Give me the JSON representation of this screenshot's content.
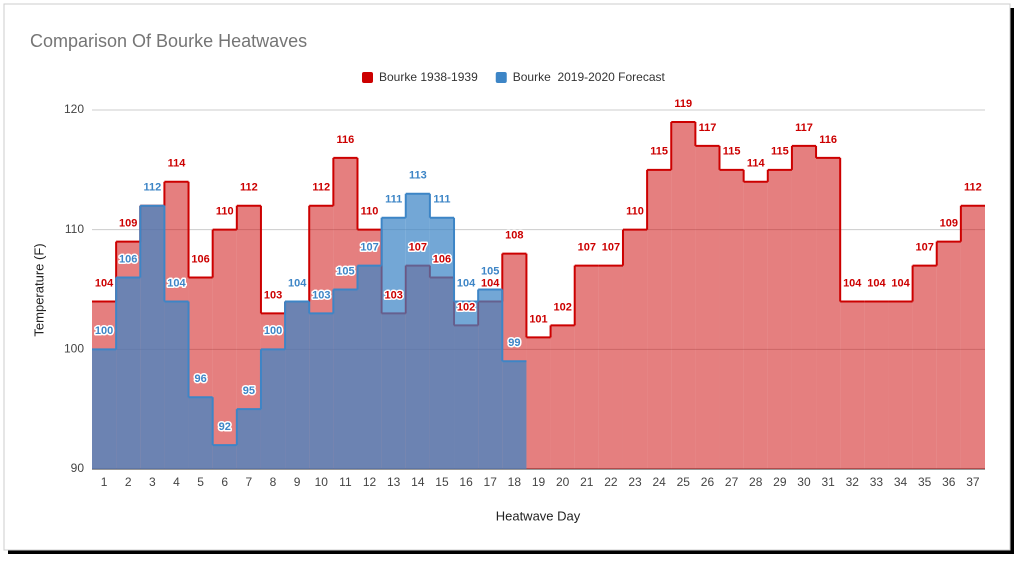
{
  "chart_data": {
    "type": "stepped-area",
    "title": "Comparison Of Bourke Heatwaves",
    "x_label": "Heatwave Day",
    "y_label": "Temperature (F)",
    "categories": [
      "1",
      "2",
      "3",
      "4",
      "5",
      "6",
      "7",
      "8",
      "9",
      "10",
      "11",
      "12",
      "13",
      "14",
      "15",
      "16",
      "17",
      "18",
      "19",
      "20",
      "21",
      "22",
      "23",
      "24",
      "25",
      "26",
      "27",
      "28",
      "29",
      "30",
      "31",
      "32",
      "33",
      "34",
      "35",
      "36",
      "37"
    ],
    "series": [
      {
        "name": "Bourke 1938-1939",
        "color": "#cc0000",
        "values": [
          104,
          109,
          112,
          114,
          106,
          110,
          112,
          103,
          104,
          112,
          116,
          110,
          103,
          107,
          106,
          102,
          104,
          108,
          101,
          102,
          107,
          107,
          110,
          115,
          119,
          117,
          115,
          114,
          115,
          117,
          116,
          104,
          104,
          104,
          107,
          109,
          112
        ]
      },
      {
        "name": "Bourke  2019-2020 Forecast",
        "color": "#3d85c6",
        "values": [
          100,
          106,
          112,
          104,
          96,
          92,
          95,
          100,
          104,
          103,
          105,
          107,
          111,
          113,
          111,
          104,
          105,
          99,
          null,
          null,
          null,
          null,
          null,
          null,
          null,
          null,
          null,
          null,
          null,
          null,
          null,
          null,
          null,
          null,
          null,
          null,
          null
        ]
      }
    ],
    "ylim": [
      90,
      120
    ],
    "yticks": [
      90,
      100,
      110,
      120
    ],
    "grid": true,
    "legend": "top"
  }
}
